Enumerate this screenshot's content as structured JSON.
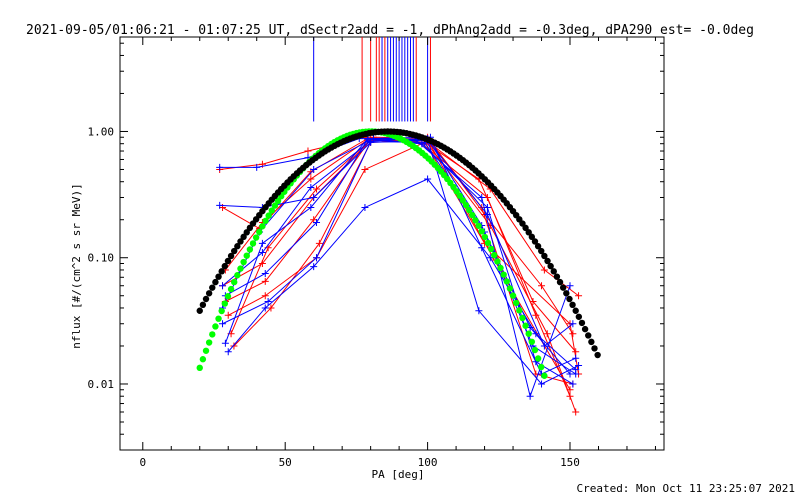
{
  "title": "2021-09-05/01:06:21 - 01:07:25 UT, dSectr2add = -1, dPhAng2add = -0.3deg, dPA290_est= -0.0deg",
  "footer": "Created: Mon Oct 11 23:25:07 2021",
  "colors": {
    "red": "#ff0000",
    "blue": "#0000ff",
    "green": "#00ff00",
    "black": "#000000"
  },
  "chart_data": {
    "type": "scatter",
    "xlabel": "PA [deg]",
    "ylabel": "nflux [#/(cm^2 s sr MeV)]",
    "xlim": [
      -8,
      183
    ],
    "ylim": [
      0.003,
      5.6
    ],
    "yscale": "log",
    "grid": false,
    "xticks": [
      0,
      50,
      100,
      150
    ],
    "xtick_labels": [
      "0",
      "50",
      "100",
      "150"
    ],
    "yticks": [
      0.01,
      0.1,
      1.0
    ],
    "ytick_labels": [
      "0.01",
      "0.10",
      "1.00"
    ],
    "vertical_markers": {
      "ymin": 1.2,
      "blue_x": [
        60,
        84,
        86,
        87,
        88,
        89,
        90,
        91,
        92,
        93,
        94,
        95,
        100
      ],
      "red_x": [
        77,
        80,
        82,
        83,
        85,
        96,
        101
      ]
    },
    "model_curves": [
      {
        "color": "green",
        "x_range": [
          20,
          141
        ],
        "peak_x": 80,
        "peak_y": 1.0,
        "width_deg": 28.9
      },
      {
        "color": "black",
        "x_range": [
          20,
          160
        ],
        "peak_x": 86,
        "peak_y": 1.0,
        "width_deg": 36.5
      }
    ],
    "series": [
      {
        "color": "red",
        "x": [
          27,
          42,
          58,
          78,
          99,
          118,
          137,
          152
        ],
        "y": [
          0.5,
          0.55,
          0.7,
          0.9,
          0.82,
          0.42,
          0.045,
          0.018
        ]
      },
      {
        "color": "red",
        "x": [
          28,
          41,
          59,
          79,
          98,
          121,
          138,
          150
        ],
        "y": [
          0.25,
          0.17,
          0.48,
          0.88,
          0.8,
          0.3,
          0.035,
          0.008
        ]
      },
      {
        "color": "red",
        "x": [
          28,
          42,
          60,
          80,
          99,
          122,
          142,
          152
        ],
        "y": [
          0.06,
          0.09,
          0.3,
          0.85,
          0.85,
          0.18,
          0.025,
          0.006
        ]
      },
      {
        "color": "red",
        "x": [
          29,
          43,
          60,
          80,
          100,
          120,
          140,
          151
        ],
        "y": [
          0.045,
          0.065,
          0.2,
          0.87,
          0.9,
          0.22,
          0.06,
          0.025
        ]
      },
      {
        "color": "red",
        "x": [
          30,
          43,
          61,
          78,
          99,
          120,
          150,
          153
        ],
        "y": [
          0.035,
          0.05,
          0.1,
          0.5,
          0.82,
          0.13,
          0.03,
          0.012
        ]
      },
      {
        "color": "red",
        "x": [
          31,
          44,
          61,
          81,
          100,
          119,
          138,
          151
        ],
        "y": [
          0.025,
          0.12,
          0.35,
          0.9,
          0.88,
          0.25,
          0.012,
          0.01
        ]
      },
      {
        "color": "red",
        "x": [
          29,
          42,
          59,
          79,
          101,
          122,
          141,
          153
        ],
        "y": [
          0.08,
          0.19,
          0.42,
          0.86,
          0.8,
          0.35,
          0.08,
          0.05
        ]
      },
      {
        "color": "red",
        "x": [
          32,
          45,
          62,
          80,
          100,
          123,
          150
        ],
        "y": [
          0.02,
          0.04,
          0.13,
          0.82,
          0.86,
          0.1,
          0.009
        ]
      },
      {
        "color": "blue",
        "x": [
          27,
          40,
          58,
          76,
          96,
          119,
          136,
          150
        ],
        "y": [
          0.52,
          0.52,
          0.62,
          0.88,
          0.85,
          0.3,
          0.008,
          0.06
        ]
      },
      {
        "color": "blue",
        "x": [
          27,
          42,
          60,
          80,
          100,
          121,
          141,
          151
        ],
        "y": [
          0.26,
          0.25,
          0.3,
          0.82,
          0.85,
          0.22,
          0.02,
          0.03
        ]
      },
      {
        "color": "blue",
        "x": [
          28,
          42,
          59,
          80,
          100,
          119,
          137,
          152
        ],
        "y": [
          0.06,
          0.11,
          0.36,
          0.84,
          0.88,
          0.18,
          0.02,
          0.012
        ]
      },
      {
        "color": "blue",
        "x": [
          29,
          43,
          61,
          79,
          98,
          121,
          138,
          151
        ],
        "y": [
          0.05,
          0.075,
          0.19,
          0.87,
          0.8,
          0.25,
          0.015,
          0.01
        ]
      },
      {
        "color": "blue",
        "x": [
          28,
          41,
          60,
          81,
          101,
          119,
          140,
          152
        ],
        "y": [
          0.04,
          0.16,
          0.5,
          0.88,
          0.9,
          0.12,
          0.012,
          0.016
        ]
      },
      {
        "color": "blue",
        "x": [
          28,
          44,
          61,
          80,
          99,
          120,
          136,
          150
        ],
        "y": [
          0.03,
          0.045,
          0.1,
          0.83,
          0.82,
          0.16,
          0.028,
          0.012
        ]
      },
      {
        "color": "blue",
        "x": [
          29,
          42,
          59,
          79,
          100,
          118,
          140,
          153
        ],
        "y": [
          0.021,
          0.13,
          0.25,
          0.88,
          0.86,
          0.038,
          0.01,
          0.014
        ]
      },
      {
        "color": "blue",
        "x": [
          30,
          43,
          60,
          78,
          100,
          122,
          138,
          152
        ],
        "y": [
          0.018,
          0.04,
          0.085,
          0.25,
          0.42,
          0.1,
          0.025,
          0.013
        ]
      }
    ]
  }
}
